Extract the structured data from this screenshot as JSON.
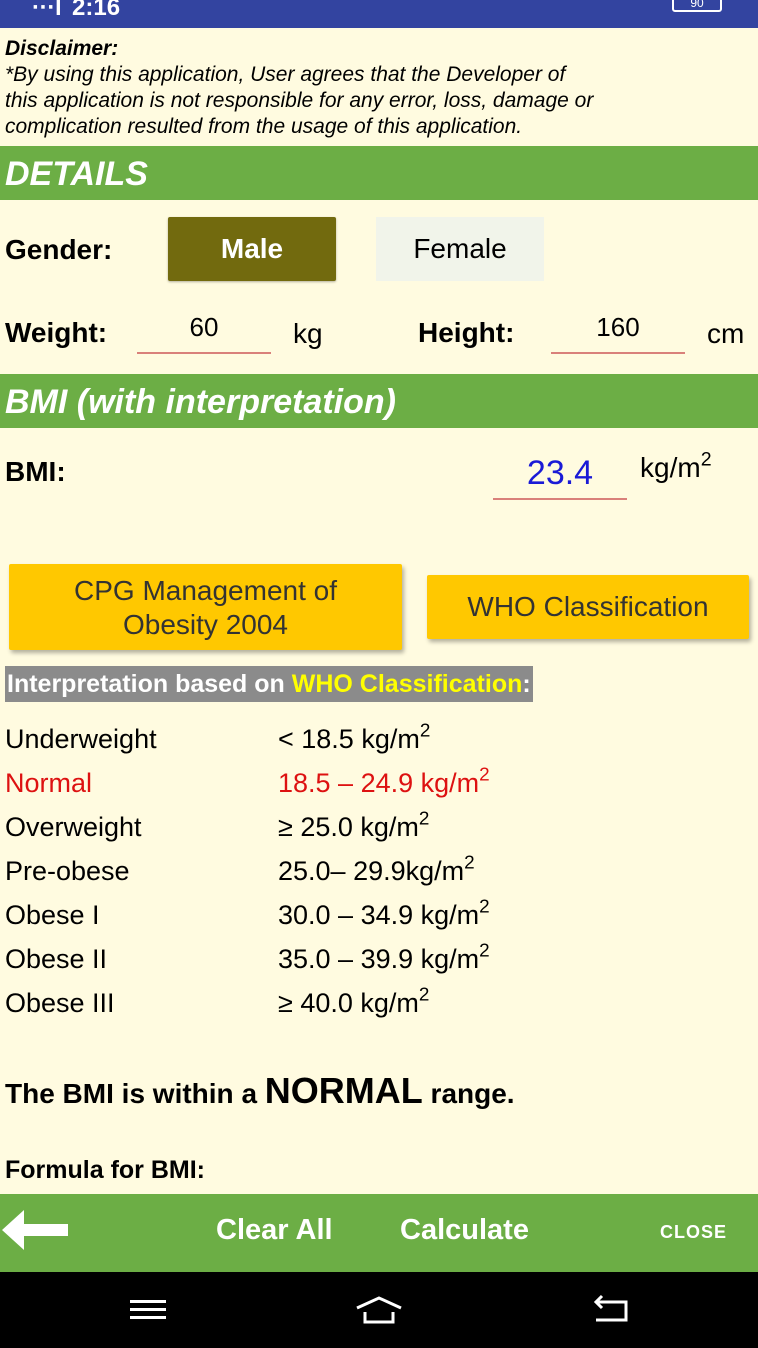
{
  "status": {
    "signal": "∙∙∙l",
    "time": "2:16",
    "battery": "90"
  },
  "disclaimer": {
    "title": "Disclaimer:",
    "lines": [
      "*By using this application, User agrees that the Developer of",
      "this application is not responsible for any error, loss, damage or",
      "complication resulted from the usage of this application."
    ]
  },
  "details": {
    "heading": "DETAILS",
    "gender_label": "Gender:",
    "male": "Male",
    "female": "Female",
    "selected_gender": "Male",
    "weight_label": "Weight:",
    "weight_value": "60",
    "weight_unit": "kg",
    "height_label": "Height:",
    "height_value": "160",
    "height_unit": "cm"
  },
  "bmi": {
    "heading": "BMI (with interpretation)",
    "label": "BMI:",
    "value": "23.4",
    "unit_base": "kg/m",
    "unit_exp": "2"
  },
  "buttons": {
    "cpg_line1": "CPG Management of",
    "cpg_line2": "Obesity 2004",
    "who": "WHO Classification"
  },
  "interpretation": {
    "prefix": "Interpretation based on ",
    "highlight": "WHO Classification",
    "suffix": ":",
    "rows": [
      {
        "category": "Underweight",
        "range": "< 18.5 kg/m",
        "exp": "2"
      },
      {
        "category": "Normal",
        "range": "18.5 – 24.9 kg/m",
        "exp": "2",
        "active": true
      },
      {
        "category": "Overweight",
        "range": "≥ 25.0 kg/m",
        "exp": "2"
      },
      {
        "category": "Pre-obese",
        "range": "25.0– 29.9kg/m",
        "exp": "2"
      },
      {
        "category": "Obese I",
        "range": "30.0 – 34.9 kg/m",
        "exp": "2"
      },
      {
        "category": "Obese II",
        "range": "35.0 – 39.9 kg/m",
        "exp": "2"
      },
      {
        "category": "Obese III",
        "range": "≥ 40.0 kg/m",
        "exp": "2"
      }
    ]
  },
  "result": {
    "prefix": "The BMI is within a ",
    "status": "NORMAL",
    "suffix": " range."
  },
  "formula": {
    "title": "Formula for BMI:"
  },
  "bottom": {
    "back_icon": "back-arrow-icon",
    "clear": "Clear All",
    "calculate": "Calculate",
    "close": "CLOSE"
  },
  "colors": {
    "green": "#6cae45",
    "selected": "#726a0e",
    "yellow": "#ffc800",
    "bmi_value": "#1a1ad6",
    "normal": "#dd1111"
  }
}
